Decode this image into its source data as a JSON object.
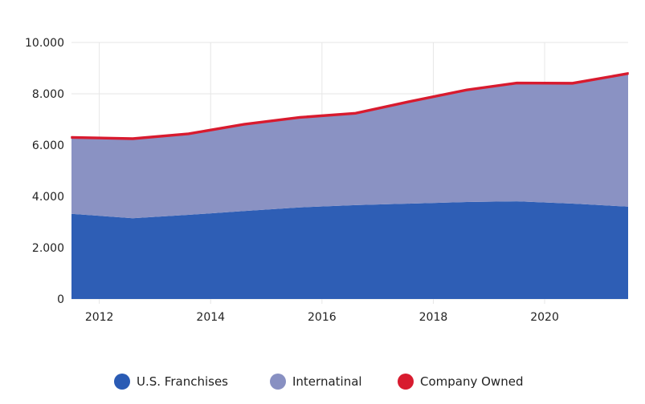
{
  "chart_data": {
    "type": "area",
    "stacked": true,
    "title": "",
    "xlabel": "",
    "ylabel": "",
    "xlim": [
      2011.5,
      2021.5
    ],
    "ylim": [
      0,
      10000
    ],
    "x_ticks": [
      2012,
      2014,
      2016,
      2018,
      2020
    ],
    "x_tick_labels": [
      "2012",
      "2014",
      "2016",
      "2018",
      "2020"
    ],
    "y_ticks": [
      0,
      2000,
      4000,
      6000,
      8000,
      10000
    ],
    "y_tick_labels": [
      "0",
      "2.000",
      "4.000",
      "6.000",
      "8.000",
      "10.000"
    ],
    "grid": true,
    "legend_position": "bottom",
    "x": [
      2011.5,
      2012.6,
      2013.6,
      2014.6,
      2015.6,
      2016.6,
      2017.6,
      2018.6,
      2019.5,
      2020.5,
      2021.5
    ],
    "series": [
      {
        "name": "U.S. Franchises",
        "color": "#2a5bb4",
        "values": [
          3320,
          3150,
          3280,
          3430,
          3570,
          3660,
          3720,
          3780,
          3810,
          3720,
          3600
        ]
      },
      {
        "name": "Internatinal",
        "color": "#8890c2",
        "values": [
          2950,
          3070,
          3130,
          3350,
          3480,
          3550,
          3960,
          4340,
          4580,
          4660,
          5160
        ]
      },
      {
        "name": "Company Owned",
        "color": "#d81b2f",
        "values": [
          60,
          60,
          60,
          60,
          60,
          60,
          60,
          60,
          60,
          60,
          60
        ]
      }
    ]
  }
}
